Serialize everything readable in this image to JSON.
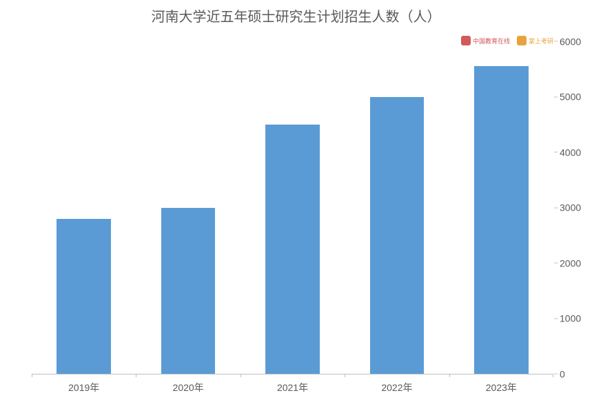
{
  "chart": {
    "type": "bar",
    "title": "河南大学近五年硕士研究生计划招生人数（人）",
    "title_fontsize": 20,
    "title_color": "#595959",
    "categories": [
      "2019年",
      "2020年",
      "2021年",
      "2022年",
      "2023年"
    ],
    "values": [
      2800,
      3000,
      4500,
      5000,
      5550
    ],
    "bar_color": "#5b9bd5",
    "bar_width_ratio": 0.52,
    "ylim": [
      0,
      6000
    ],
    "ytick_step": 1000,
    "yticks": [
      0,
      1000,
      2000,
      3000,
      4000,
      5000,
      6000
    ],
    "y_axis_side": "right",
    "axis_color": "#bfbfbf",
    "label_color": "#595959",
    "label_fontsize": 14,
    "tick_fontsize": 14,
    "background_color": "#ffffff",
    "grid": false
  },
  "logos": {
    "left": {
      "text": "中国教育在线",
      "color": "#d15a5a"
    },
    "right": {
      "text": "掌上考研",
      "color": "#e8a33d"
    }
  }
}
